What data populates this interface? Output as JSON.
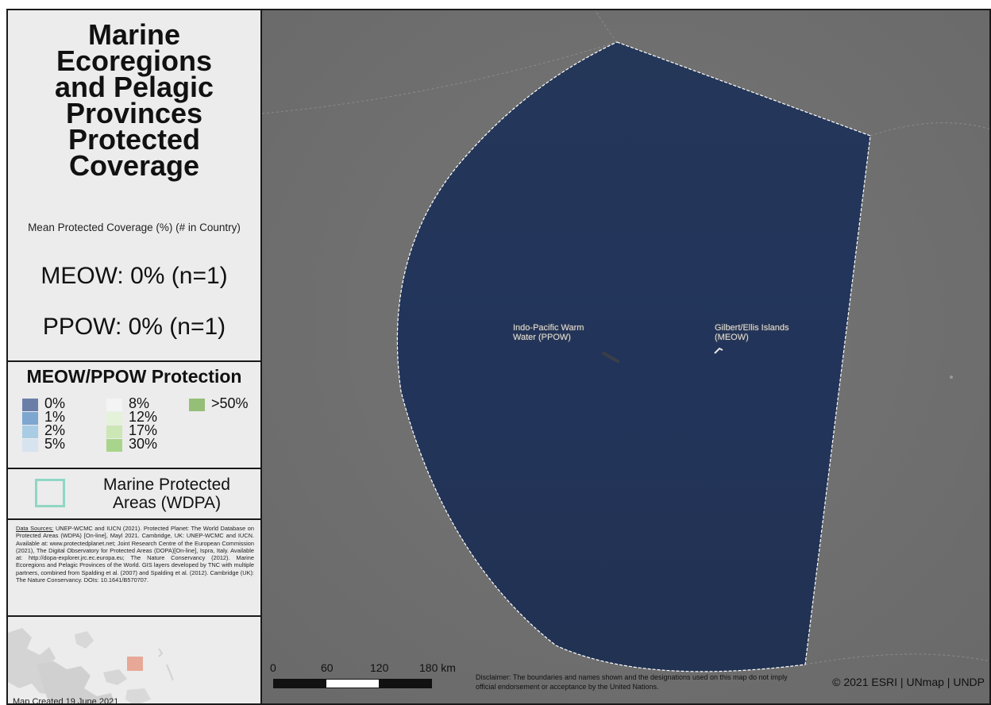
{
  "title": {
    "line1": "Marine",
    "line2": "Ecoregions",
    "line3": "and Pelagic",
    "line4": "Provinces",
    "line5": "Protected",
    "line6": "Coverage"
  },
  "subtitle": "Mean Protected Coverage (%) (# in Country)",
  "stats": {
    "meow": "MEOW: 0%  (n=1)",
    "ppow": "PPOW: 0%  (n=1)"
  },
  "legend": {
    "title": "MEOW/PPOW Protection",
    "items": [
      {
        "label": "0%",
        "color": "#6a7fa8"
      },
      {
        "label": "1%",
        "color": "#7da6d1"
      },
      {
        "label": "2%",
        "color": "#a8cce4"
      },
      {
        "label": "5%",
        "color": "#d7e3ee"
      },
      {
        "label": "8%",
        "color": "#f4f4f4"
      },
      {
        "label": "12%",
        "color": "#e4f2da"
      },
      {
        "label": "17%",
        "color": "#cde6b6"
      },
      {
        "label": "30%",
        "color": "#a9d48b"
      },
      {
        "label": ">50%",
        "color": "#95bf76"
      }
    ]
  },
  "mpa_legend": {
    "label": "Marine Protected Areas (WDPA)",
    "color": "#8fd6c4"
  },
  "sources": {
    "heading": "Data Sources:",
    "text": "UNEP-WCMC and IUCN (2021). Protected Planet: The World Database on Protected Areas (WDPA) [On-line], Mayl 2021. Cambridge, UK: UNEP-WCMC and IUCN. Available at: www.protectedplanet.net; Joint Research Centre of the European Commission (2021), The Digital Observatory for Protected Areas (DOPA)[On-line], Ispra, Italy. Available at: http://dopa-explorer.jrc.ec.europa.eu; The Nature Conservancy (2012). Marine Ecoregions and Pelagic Provinces of the World. GIS layers developed by TNC with multiple partners, combined from Spalding et al. (2007) and Spalding et al. (2012). Cambridge (UK): The Nature Conservancy. DOIs: 10.1641/B570707."
  },
  "map_created": "Map Created 19 June 2021",
  "map_labels": {
    "ppow": "Indo-Pacific Warm Water (PPOW)",
    "meow": "Gilbert/Ellis Islands (MEOW)"
  },
  "scale": {
    "ticks": [
      "0",
      "60",
      "120",
      "180 km"
    ]
  },
  "disclaimer": "Disclaimer: The boundaries and names shown and the designations used on this map do not imply official endorsement or acceptance by the United Nations.",
  "credit": "© 2021 ESRI | UNmap | UNDP",
  "colors": {
    "ocean": "#6f6f6f",
    "region_fill": "#233558",
    "inset_highlight": "#e7a898"
  }
}
